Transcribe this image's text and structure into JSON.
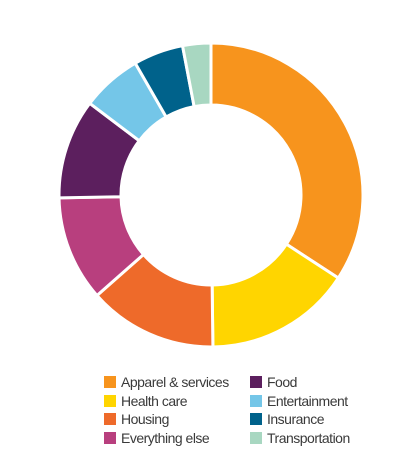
{
  "chart_data": {
    "type": "pie",
    "style": "donut",
    "slices": [
      {
        "label": "Apparel & services",
        "value": 34.2,
        "color": "#F7941D"
      },
      {
        "label": "Health care",
        "value": 15.6,
        "color": "#FFD500"
      },
      {
        "label": "Housing",
        "value": 13.7,
        "color": "#EE6A2A"
      },
      {
        "label": "Everything else",
        "value": 11.2,
        "color": "#B83F7E"
      },
      {
        "label": "Food",
        "value": 10.6,
        "color": "#5C1F5E"
      },
      {
        "label": "Entertainment",
        "value": 6.4,
        "color": "#74C6E8"
      },
      {
        "label": "Insurance",
        "value": 5.3,
        "color": "#00628B"
      },
      {
        "label": "Transportation",
        "value": 3.0,
        "color": "#A8D7C1"
      }
    ],
    "legend": {
      "placement": "bottom",
      "columns": [
        [
          "Apparel & services",
          "Health care",
          "Housing",
          "Everything else"
        ],
        [
          "Food",
          "Entertainment",
          "Insurance",
          "Transportation"
        ]
      ]
    }
  }
}
